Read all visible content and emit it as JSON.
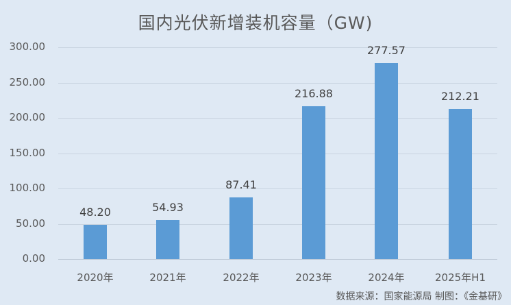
{
  "chart_data": {
    "type": "bar",
    "title": "国内光伏新增装机容量（GW)",
    "xlabel": "",
    "ylabel": "",
    "categories": [
      "2020年",
      "2021年",
      "2022年",
      "2023年",
      "2024年",
      "2025年H1"
    ],
    "values": [
      48.2,
      54.93,
      87.41,
      216.88,
      277.57,
      212.21
    ],
    "value_labels": [
      "48.20",
      "54.93",
      "87.41",
      "216.88",
      "277.57",
      "212.21"
    ],
    "ylim": [
      0,
      300
    ],
    "yticks": [
      "0.00",
      "50.00",
      "100.00",
      "150.00",
      "200.00",
      "250.00",
      "300.00"
    ],
    "grid": true,
    "legend": null,
    "bar_color": "#5b9bd5",
    "source_note": "数据来源：国家能源局  制图：《金基研》"
  },
  "colors": {
    "background": "#dfe9f4",
    "bar": "#5b9bd5",
    "gridline": "#c9d4e0",
    "text": "#595959"
  }
}
